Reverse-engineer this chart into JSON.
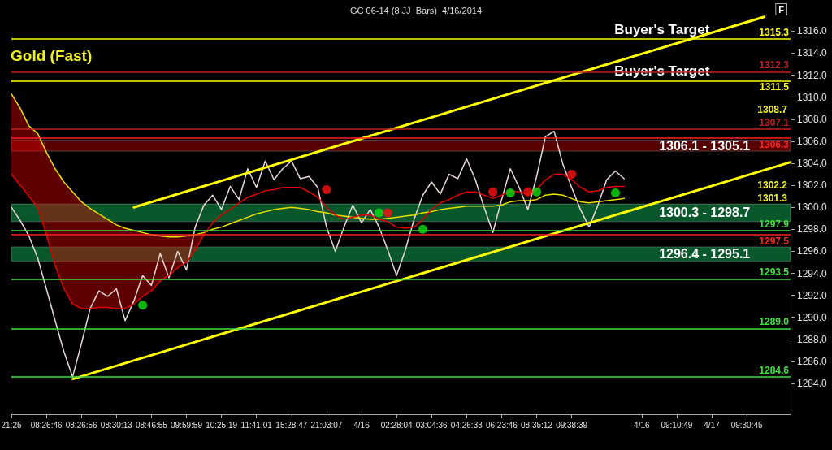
{
  "chart_data": {
    "type": "line",
    "title": "Gold (Fast)",
    "subtitle": "GC 06-14 (8 JJ_Bars)  4/16/2014",
    "marker": "none",
    "categories": [
      "21:25",
      null,
      null,
      null,
      "08:26:46",
      null,
      null,
      null,
      "08:26:56",
      null,
      null,
      null,
      "08:30:13",
      null,
      null,
      null,
      "08:46:55",
      null,
      null,
      null,
      "09:59:59",
      null,
      null,
      null,
      "10:25:19",
      null,
      null,
      null,
      "11:41:01",
      null,
      null,
      null,
      "15:28:47",
      null,
      null,
      null,
      "21:03:07",
      null,
      null,
      null,
      "4/16",
      null,
      null,
      null,
      "02:28:04",
      null,
      null,
      null,
      "03:04:36",
      null,
      null,
      null,
      "04:26:33",
      null,
      null,
      null,
      "06:23:46",
      null,
      null,
      null,
      "08:35:12",
      null,
      null,
      null,
      "09:38:39",
      null,
      null,
      null,
      null,
      null,
      null,
      null,
      "4/16",
      null,
      null,
      null,
      "09:10:49",
      null,
      null,
      null,
      "4/17",
      null,
      null,
      null,
      "09:30:45",
      null,
      null,
      null,
      null,
      null
    ],
    "ylim": [
      1281.2,
      1317.5
    ],
    "yticks": [
      {
        "value": 1284,
        "label": "1284.0"
      },
      {
        "value": 1286,
        "label": "1286.0"
      },
      {
        "value": 1288,
        "label": "1288.0"
      },
      {
        "value": 1290,
        "label": "1290.0"
      },
      {
        "value": 1292,
        "label": "1292.0"
      },
      {
        "value": 1294,
        "label": "1294.0"
      },
      {
        "value": 1296,
        "label": "1296.0"
      },
      {
        "value": 1298,
        "label": "1298.0"
      },
      {
        "value": 1300,
        "label": "1300.0"
      },
      {
        "value": 1302,
        "label": "1302.0"
      },
      {
        "value": 1304,
        "label": "1304.0"
      },
      {
        "value": 1306,
        "label": "1306.0"
      },
      {
        "value": 1308,
        "label": "1308.0"
      },
      {
        "value": 1310,
        "label": "1310.0"
      },
      {
        "value": 1312,
        "label": "1312.0"
      },
      {
        "value": 1314,
        "label": "1314.0"
      },
      {
        "value": 1316,
        "label": "1316.0"
      }
    ],
    "series": [
      {
        "type": "line",
        "color": "#e8d8d8",
        "values": [
          1300.0,
          1298.8,
          1297.4,
          1295.4,
          1292.6,
          1289.7,
          1286.9,
          1284.6,
          1287.6,
          1290.8,
          1292.4,
          1291.9,
          1292.6,
          1289.7,
          1291.5,
          1293.8,
          1292.9,
          1295.8,
          1293.6,
          1296.0,
          1294.3,
          1298.2,
          1300.2,
          1301.1,
          1299.8,
          1301.9,
          1300.7,
          1303.5,
          1301.8,
          1304.2,
          1302.5,
          1303.5,
          1304.2,
          1302.6,
          1302.8,
          1301.8,
          1298.2,
          1296.0,
          1298.2,
          1300.2,
          1298.6,
          1299.8,
          1298.2,
          1296.1,
          1293.8,
          1296.1,
          1298.9,
          1301.1,
          1302.3,
          1301.2,
          1303.0,
          1302.6,
          1304.4,
          1302.5,
          1300.0,
          1297.7,
          1300.7,
          1303.5,
          1301.8,
          1299.8,
          1302.8,
          1306.4,
          1306.9,
          1303.9,
          1301.8,
          1299.8,
          1298.2,
          1300.2,
          1302.5,
          1303.3,
          1302.6,
          null,
          null,
          null,
          null,
          null,
          null,
          null,
          null,
          null,
          null,
          null,
          null,
          null,
          null,
          null,
          null,
          null,
          null,
          null
        ]
      },
      {
        "type": "line",
        "color": "#e8e000",
        "values": [
          1310.3,
          1309.0,
          1307.4,
          1306.7,
          1305.0,
          1303.5,
          1302.3,
          1301.4,
          1300.5,
          1299.9,
          1299.4,
          1298.9,
          1298.4,
          1298.1,
          1297.9,
          1297.7,
          1297.5,
          1297.4,
          1297.3,
          1297.3,
          1297.4,
          1297.5,
          1297.7,
          1298.0,
          1298.2,
          1298.5,
          1298.8,
          1299.1,
          1299.4,
          1299.6,
          1299.8,
          1299.9,
          1300.0,
          1299.9,
          1299.8,
          1299.6,
          1299.5,
          1299.3,
          1299.2,
          1299.1,
          1299.0,
          1298.9,
          1298.9,
          1299.0,
          1299.1,
          1299.2,
          1299.3,
          1299.5,
          1299.6,
          1299.8,
          1299.9,
          1300.0,
          1300.1,
          1300.1,
          1300.1,
          1300.1,
          1300.2,
          1300.5,
          1300.6,
          1300.6,
          1300.7,
          1301.1,
          1301.2,
          1301.1,
          1300.8,
          1300.5,
          1300.4,
          1300.5,
          1300.6,
          1300.7,
          1300.8,
          null,
          null,
          null,
          null,
          null,
          null,
          null,
          null,
          null,
          null,
          null,
          null,
          null,
          null,
          null,
          null,
          null,
          null,
          null
        ]
      },
      {
        "type": "line",
        "color": "#e00000",
        "values": [
          1303.0,
          1302.0,
          1301.0,
          1300.0,
          1297.5,
          1294.7,
          1292.6,
          1291.2,
          1290.8,
          1290.8,
          1290.9,
          1290.9,
          1290.8,
          1290.8,
          1291.2,
          1291.9,
          1292.4,
          1293.3,
          1293.8,
          1294.5,
          1295.0,
          1296.1,
          1297.5,
          1298.6,
          1299.3,
          1299.8,
          1300.4,
          1300.9,
          1301.2,
          1301.5,
          1301.6,
          1301.8,
          1301.8,
          1301.8,
          1301.4,
          1300.9,
          1300.0,
          1299.3,
          1298.9,
          1299.1,
          1299.3,
          1299.3,
          1298.9,
          1298.7,
          1298.2,
          1298.1,
          1298.2,
          1298.9,
          1299.8,
          1300.4,
          1300.7,
          1301.1,
          1301.4,
          1301.4,
          1301.1,
          1300.8,
          1301.1,
          1301.5,
          1301.4,
          1301.2,
          1301.6,
          1302.5,
          1303.0,
          1303.0,
          1302.5,
          1301.8,
          1301.4,
          1301.5,
          1301.8,
          1301.9,
          1301.9,
          null,
          null,
          null,
          null,
          null,
          null,
          null,
          null,
          null,
          null,
          null,
          null,
          null,
          null,
          null,
          null,
          null,
          null,
          null
        ],
        "lower": [
          1303.0,
          1302.0,
          1301.0,
          1300.0,
          1297.5,
          1294.7,
          1292.6,
          1291.2,
          1290.8,
          1290.8,
          1290.9,
          1290.9,
          1290.8,
          1290.8,
          1291.2,
          1291.9,
          1292.4,
          1293.3,
          1293.8,
          1294.5,
          1295.0,
          1296.1,
          1297.5,
          null,
          null,
          null,
          null,
          null,
          null,
          null,
          null,
          null,
          null,
          null,
          null,
          null,
          null,
          null,
          null,
          null,
          null,
          null,
          null,
          null,
          null,
          null,
          null,
          null,
          null,
          null,
          null,
          null,
          null,
          null,
          null,
          null,
          null,
          null,
          null,
          null,
          null,
          null,
          null,
          null,
          null,
          null,
          null,
          null,
          null,
          null,
          null,
          null,
          null,
          null,
          null,
          null,
          null,
          null,
          null,
          null,
          null,
          null,
          null,
          null,
          null,
          null,
          null,
          null,
          null,
          null
        ],
        "upper": [
          1310.3,
          1309.0,
          1307.4,
          1306.7,
          1305.0,
          1303.5,
          1302.3,
          1301.4,
          1300.5,
          1299.9,
          1299.4,
          1298.9,
          1298.4,
          1298.1,
          1297.9,
          1297.7,
          1297.5,
          1297.4,
          1297.3,
          1297.3,
          1297.4,
          1297.5,
          1297.7,
          null,
          null,
          null,
          null,
          null,
          null,
          null,
          null,
          null,
          null,
          null,
          null,
          null,
          null,
          null,
          null,
          null,
          null,
          null,
          null,
          null,
          null,
          null,
          null,
          null,
          null,
          null,
          null,
          null,
          null,
          null,
          null,
          null,
          null,
          null,
          null,
          null,
          null,
          null,
          null,
          null,
          null,
          null,
          null,
          null,
          null,
          null,
          null,
          null,
          null,
          null,
          null,
          null,
          null,
          null,
          null,
          null,
          null,
          null,
          null,
          null,
          null,
          null,
          null,
          null,
          null,
          null
        ]
      },
      {
        "type": "line",
        "color": "#ffff00",
        "values": [
          null,
          null,
          null,
          null,
          null,
          null,
          null,
          null,
          null,
          null,
          null,
          null,
          null,
          null,
          1300.0,
          null,
          null,
          null,
          null,
          null,
          null,
          null,
          null,
          null,
          null,
          null,
          null,
          null,
          null,
          null,
          null,
          null,
          null,
          null,
          null,
          null,
          null,
          null,
          null,
          null,
          null,
          null,
          null,
          null,
          null,
          null,
          null,
          null,
          null,
          null,
          null,
          null,
          null,
          null,
          null,
          null,
          null,
          null,
          null,
          null,
          null,
          null,
          null,
          null,
          null,
          null,
          null,
          null,
          null,
          null,
          null,
          null,
          null,
          null,
          null,
          null,
          null,
          null,
          null,
          null,
          null,
          null,
          null,
          null,
          null,
          null,
          1317.3,
          null,
          null,
          null
        ]
      },
      {
        "type": "line",
        "color": "#ffff00",
        "values": [
          null,
          null,
          null,
          null,
          null,
          null,
          null,
          1284.4,
          null,
          null,
          null,
          null,
          null,
          null,
          null,
          null,
          null,
          null,
          null,
          null,
          null,
          null,
          null,
          null,
          null,
          null,
          null,
          null,
          null,
          null,
          null,
          null,
          null,
          null,
          null,
          null,
          null,
          null,
          null,
          null,
          null,
          null,
          null,
          null,
          null,
          null,
          null,
          null,
          null,
          null,
          null,
          null,
          null,
          null,
          null,
          null,
          null,
          null,
          null,
          null,
          null,
          null,
          null,
          null,
          null,
          null,
          null,
          null,
          null,
          null,
          null,
          null,
          null,
          null,
          null,
          null,
          null,
          null,
          null,
          null,
          null,
          null,
          null,
          null,
          null,
          null,
          null,
          null,
          null,
          1304.1
        ]
      },
      {
        "type": "scatter",
        "marker": "circle",
        "color": "#ff1010",
        "values": [
          null,
          null,
          null,
          null,
          null,
          null,
          null,
          null,
          null,
          null,
          null,
          null,
          null,
          null,
          null,
          null,
          null,
          null,
          null,
          null,
          null,
          null,
          null,
          null,
          null,
          null,
          null,
          null,
          null,
          null,
          null,
          null,
          null,
          null,
          null,
          null,
          1301.6,
          null,
          null,
          null,
          null,
          null,
          null,
          1299.5,
          null,
          null,
          null,
          null,
          null,
          null,
          null,
          null,
          null,
          null,
          null,
          1301.4,
          null,
          null,
          null,
          1301.4,
          null,
          null,
          null,
          null,
          1303.0,
          null,
          null,
          null,
          null,
          null,
          null,
          null,
          null,
          null,
          null,
          null,
          null,
          null,
          null,
          null,
          null,
          null,
          null,
          null,
          null,
          null,
          null,
          null,
          null,
          null
        ]
      },
      {
        "type": "scatter",
        "marker": "circle",
        "color": "#10e010",
        "values": [
          null,
          null,
          null,
          null,
          null,
          null,
          null,
          null,
          null,
          null,
          null,
          null,
          null,
          null,
          null,
          1291.1,
          null,
          null,
          null,
          null,
          null,
          null,
          null,
          null,
          null,
          null,
          null,
          null,
          null,
          null,
          null,
          null,
          null,
          null,
          null,
          null,
          null,
          null,
          null,
          null,
          null,
          null,
          1299.5,
          null,
          null,
          null,
          null,
          1298.0,
          null,
          null,
          null,
          null,
          null,
          null,
          null,
          null,
          null,
          1301.3,
          null,
          null,
          1301.4,
          null,
          null,
          null,
          null,
          null,
          null,
          null,
          null,
          1301.3,
          null,
          null,
          null,
          null,
          null,
          null,
          null,
          null,
          null,
          null,
          null,
          null,
          null,
          null,
          null,
          null,
          null,
          null,
          null,
          null
        ]
      }
    ],
    "ref_lines": [
      {
        "axis": "y",
        "value": 1315.3,
        "label": "1315.3",
        "color": "#ffff00"
      },
      {
        "axis": "y",
        "value": 1312.3,
        "label": "1312.3",
        "color": "#c02020"
      },
      {
        "axis": "y",
        "value": 1311.5,
        "label": "1311.5",
        "color": "#ffff00"
      },
      {
        "axis": "y",
        "value": 1307.1,
        "label": "1307.1",
        "color": "#c02020"
      },
      {
        "axis": "y",
        "value": 1306.3,
        "label": "1306.3",
        "color": "#ff2020"
      },
      {
        "axis": "y",
        "value": 1297.9,
        "label": "1297.9",
        "color": "#40e040"
      },
      {
        "axis": "y",
        "value": 1297.5,
        "label": "1297.5",
        "color": "#ff2020"
      },
      {
        "axis": "y",
        "value": 1293.5,
        "label": "1293.5",
        "color": "#40e040"
      },
      {
        "axis": "y",
        "value": 1289.0,
        "label": "1289.0",
        "color": "#40e040"
      },
      {
        "axis": "y",
        "value": 1284.6,
        "label": "1284.6",
        "color": "#40e040"
      }
    ],
    "bands": [
      {
        "axis": "y",
        "from": 1305.1,
        "to": 1306.1,
        "label": "1306.1 - 1305.1",
        "color": "#a00000"
      },
      {
        "axis": "y",
        "from": 1298.7,
        "to": 1300.3,
        "label": "1300.3 - 1298.7",
        "color": "#10a050"
      },
      {
        "axis": "y",
        "from": 1295.1,
        "to": 1296.4,
        "label": "1296.4 - 1295.1",
        "color": "#10a050"
      }
    ],
    "annotations": [
      {
        "text": "Buyer's Target",
        "y": 1315.3
      },
      {
        "text": "Buyer's Target",
        "y": 1311.5
      },
      "F",
      "1308.7",
      "1302.2",
      "1301.3"
    ]
  }
}
